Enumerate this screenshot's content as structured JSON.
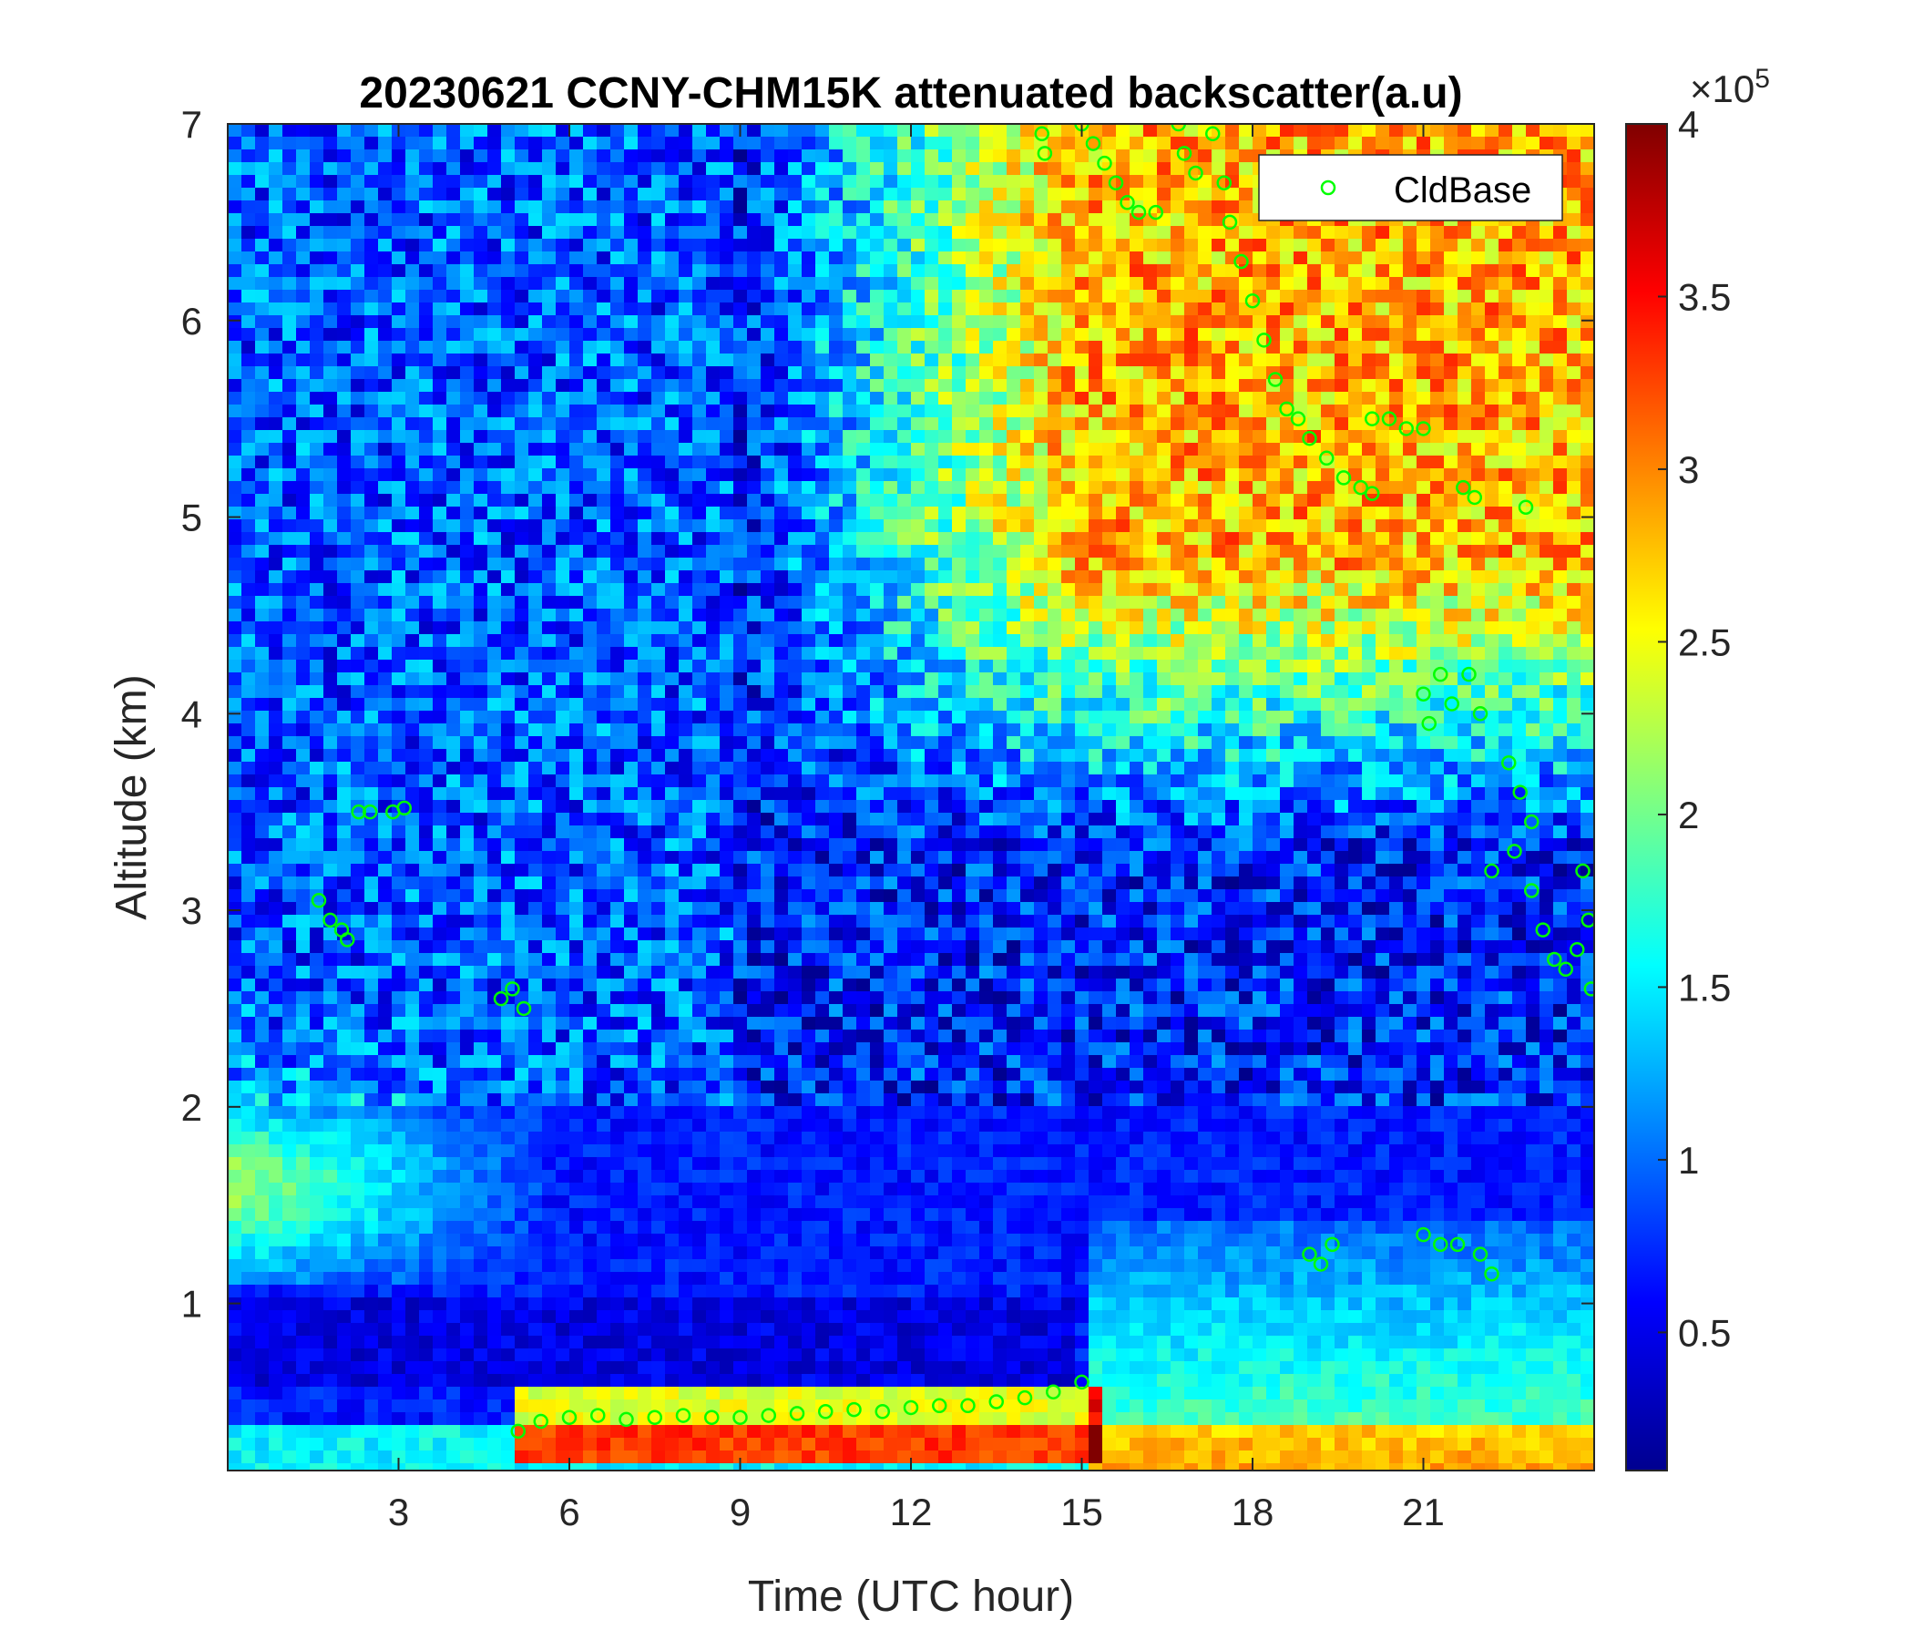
{
  "chart_data": {
    "type": "heatmap",
    "title": "20230621 CCNY-CHM15K attenuated backscatter(a.u)",
    "xlabel": "Time (UTC hour)",
    "ylabel": "Altitude (km)",
    "xlim": [
      0,
      24
    ],
    "ylim": [
      0.15,
      7
    ],
    "xticks": [
      3,
      6,
      9,
      12,
      15,
      18,
      21
    ],
    "yticks": [
      1,
      2,
      3,
      4,
      5,
      6,
      7
    ],
    "colorbar": {
      "colormap": "jet",
      "clim": [
        10000,
        400000
      ],
      "ticks": [
        0.5,
        1,
        1.5,
        2,
        2.5,
        3,
        3.5,
        4
      ],
      "exponent_label": "×10",
      "exponent": "5"
    },
    "legend": {
      "entries": [
        "CldBase"
      ],
      "location": "top-right",
      "marker": "circle",
      "color": "#00ff00"
    },
    "cloud_base": [
      {
        "x": 1.6,
        "y": 3.05
      },
      {
        "x": 1.8,
        "y": 2.95
      },
      {
        "x": 2.0,
        "y": 2.9
      },
      {
        "x": 2.1,
        "y": 2.85
      },
      {
        "x": 2.3,
        "y": 3.5
      },
      {
        "x": 2.5,
        "y": 3.5
      },
      {
        "x": 2.9,
        "y": 3.5
      },
      {
        "x": 3.1,
        "y": 3.52
      },
      {
        "x": 4.8,
        "y": 2.55
      },
      {
        "x": 5.0,
        "y": 2.6
      },
      {
        "x": 5.2,
        "y": 2.5
      },
      {
        "x": 5.1,
        "y": 0.35
      },
      {
        "x": 5.5,
        "y": 0.4
      },
      {
        "x": 6.0,
        "y": 0.42
      },
      {
        "x": 6.5,
        "y": 0.43
      },
      {
        "x": 7.0,
        "y": 0.41
      },
      {
        "x": 7.5,
        "y": 0.42
      },
      {
        "x": 8.0,
        "y": 0.43
      },
      {
        "x": 8.5,
        "y": 0.42
      },
      {
        "x": 9.0,
        "y": 0.42
      },
      {
        "x": 9.5,
        "y": 0.43
      },
      {
        "x": 10.0,
        "y": 0.44
      },
      {
        "x": 10.5,
        "y": 0.45
      },
      {
        "x": 11.0,
        "y": 0.46
      },
      {
        "x": 11.5,
        "y": 0.45
      },
      {
        "x": 12.0,
        "y": 0.47
      },
      {
        "x": 12.5,
        "y": 0.48
      },
      {
        "x": 13.0,
        "y": 0.48
      },
      {
        "x": 13.5,
        "y": 0.5
      },
      {
        "x": 14.0,
        "y": 0.52
      },
      {
        "x": 14.5,
        "y": 0.55
      },
      {
        "x": 15.0,
        "y": 0.6
      },
      {
        "x": 14.3,
        "y": 6.95
      },
      {
        "x": 14.35,
        "y": 6.85
      },
      {
        "x": 15.0,
        "y": 7.0
      },
      {
        "x": 15.2,
        "y": 6.9
      },
      {
        "x": 15.4,
        "y": 6.8
      },
      {
        "x": 15.6,
        "y": 6.7
      },
      {
        "x": 15.8,
        "y": 6.6
      },
      {
        "x": 16.0,
        "y": 6.55
      },
      {
        "x": 16.3,
        "y": 6.55
      },
      {
        "x": 16.7,
        "y": 7.0
      },
      {
        "x": 16.8,
        "y": 6.85
      },
      {
        "x": 17.0,
        "y": 6.75
      },
      {
        "x": 17.3,
        "y": 6.95
      },
      {
        "x": 17.5,
        "y": 6.7
      },
      {
        "x": 17.6,
        "y": 6.5
      },
      {
        "x": 17.8,
        "y": 6.3
      },
      {
        "x": 18.0,
        "y": 6.1
      },
      {
        "x": 18.2,
        "y": 5.9
      },
      {
        "x": 18.4,
        "y": 5.7
      },
      {
        "x": 18.6,
        "y": 5.55
      },
      {
        "x": 18.8,
        "y": 5.5
      },
      {
        "x": 19.0,
        "y": 5.4
      },
      {
        "x": 19.3,
        "y": 5.3
      },
      {
        "x": 19.6,
        "y": 5.2
      },
      {
        "x": 19.9,
        "y": 5.15
      },
      {
        "x": 20.1,
        "y": 5.12
      },
      {
        "x": 20.1,
        "y": 5.5
      },
      {
        "x": 20.4,
        "y": 5.5
      },
      {
        "x": 20.7,
        "y": 5.45
      },
      {
        "x": 21.0,
        "y": 5.45
      },
      {
        "x": 21.7,
        "y": 5.15
      },
      {
        "x": 21.9,
        "y": 5.1
      },
      {
        "x": 22.8,
        "y": 5.05
      },
      {
        "x": 21.0,
        "y": 4.1
      },
      {
        "x": 21.1,
        "y": 3.95
      },
      {
        "x": 21.3,
        "y": 4.2
      },
      {
        "x": 21.5,
        "y": 4.05
      },
      {
        "x": 21.8,
        "y": 4.2
      },
      {
        "x": 22.0,
        "y": 4.0
      },
      {
        "x": 22.5,
        "y": 3.75
      },
      {
        "x": 22.7,
        "y": 3.6
      },
      {
        "x": 22.9,
        "y": 3.45
      },
      {
        "x": 22.2,
        "y": 3.2
      },
      {
        "x": 22.6,
        "y": 3.3
      },
      {
        "x": 22.9,
        "y": 3.1
      },
      {
        "x": 23.1,
        "y": 2.9
      },
      {
        "x": 23.3,
        "y": 2.75
      },
      {
        "x": 23.5,
        "y": 2.7
      },
      {
        "x": 23.7,
        "y": 2.8
      },
      {
        "x": 23.8,
        "y": 3.2
      },
      {
        "x": 23.9,
        "y": 2.95
      },
      {
        "x": 23.95,
        "y": 2.6
      },
      {
        "x": 19.0,
        "y": 1.25
      },
      {
        "x": 19.2,
        "y": 1.2
      },
      {
        "x": 19.4,
        "y": 1.3
      },
      {
        "x": 21.0,
        "y": 1.35
      },
      {
        "x": 21.3,
        "y": 1.3
      },
      {
        "x": 21.6,
        "y": 1.3
      },
      {
        "x": 22.0,
        "y": 1.25
      },
      {
        "x": 22.2,
        "y": 1.15
      }
    ]
  }
}
